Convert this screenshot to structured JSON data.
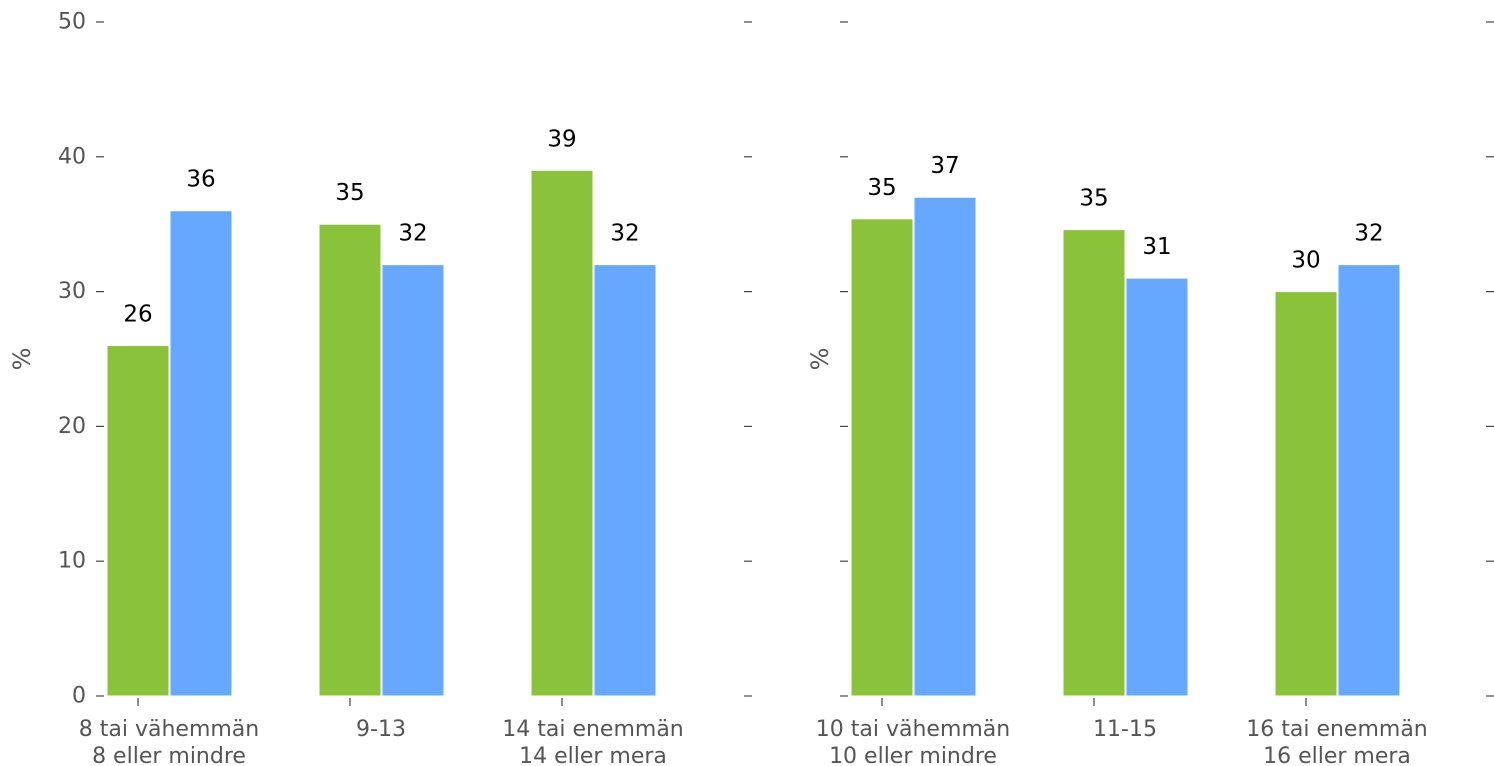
{
  "chart_data": [
    {
      "type": "bar",
      "ylabel": "%",
      "ylim": [
        0,
        50
      ],
      "yticks": [
        "0",
        "10",
        "20",
        "30",
        "40",
        "50"
      ],
      "grid": false,
      "categories": [
        [
          "8 tai vähemmän",
          "8 eller mindre"
        ],
        [
          "9-13"
        ],
        [
          "14 tai enemmän",
          "14 eller mera"
        ]
      ],
      "series": [
        {
          "values": [
            26,
            35,
            39
          ],
          "labels": [
            "26",
            "35",
            "39"
          ],
          "color": "#8ac23a"
        },
        {
          "values": [
            36,
            32,
            32
          ],
          "labels": [
            "36",
            "32",
            "32"
          ],
          "color": "#66a8ff"
        }
      ]
    },
    {
      "type": "bar",
      "ylabel": "%",
      "ylim": [
        0,
        50
      ],
      "yticks": [
        "",
        "",
        "",
        "",
        "",
        ""
      ],
      "grid": false,
      "categories": [
        [
          "10 tai vähemmän",
          "10 eller mindre"
        ],
        [
          "11-15"
        ],
        [
          "16 tai enemmän",
          "16 eller mera"
        ]
      ],
      "series": [
        {
          "values": [
            35.4,
            34.6,
            30
          ],
          "labels": [
            "35",
            "35",
            "30"
          ],
          "color": "#8ac23a"
        },
        {
          "values": [
            37,
            31,
            32
          ],
          "labels": [
            "37",
            "31",
            "32"
          ],
          "color": "#66a8ff"
        }
      ]
    }
  ]
}
